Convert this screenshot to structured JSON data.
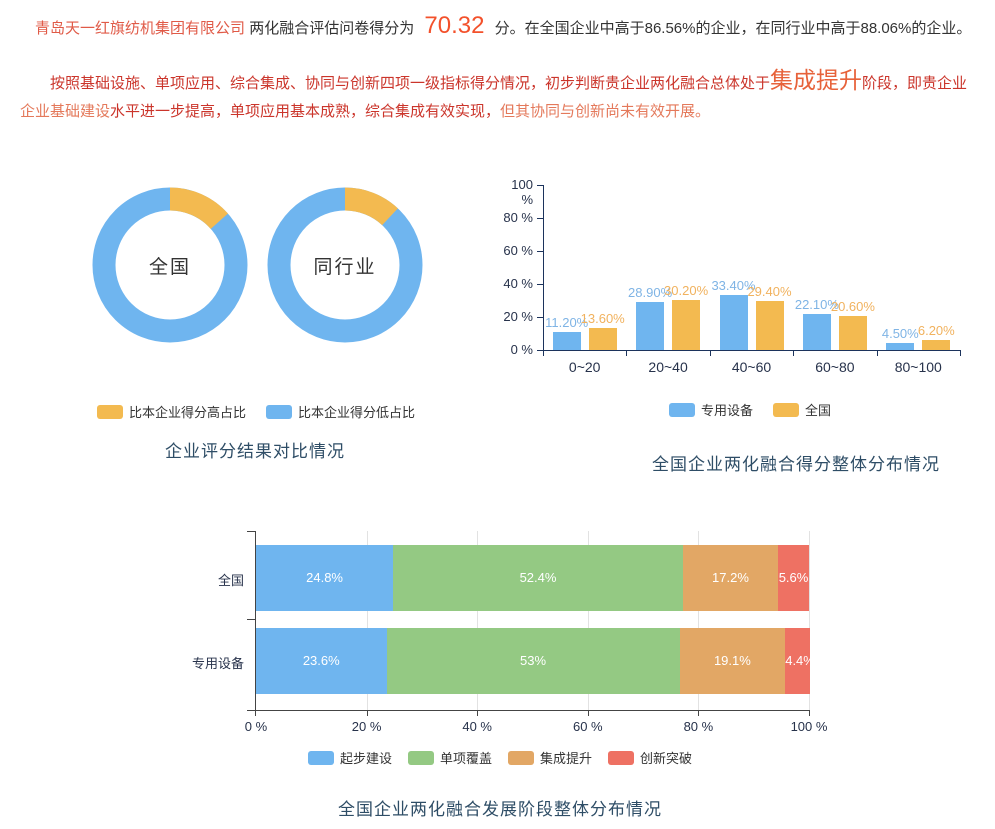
{
  "report": {
    "line1": {
      "company": "青岛天一红旗纺机集团有限公司",
      "mid": "两化融合评估问卷得分为",
      "score": "70.32",
      "tail": "分。在全国企业中高于86.56%的企业，在同行业中高于88.06%的企业。"
    },
    "line2": {
      "part1": "按照基础设施、单项应用、综合集成、协同与创新四项一级指标得分情况，初步判断贵企业两化融合总体处于",
      "stage": "集成提升",
      "part2": "阶段，即贵企业",
      "part3": "企业基础建设",
      "part4": "水平进一步提高，单项应用基本成熟，综合集成有效实现，",
      "part5": "但其协同与创新尚未有效开展。"
    }
  },
  "colors": {
    "blue": "#6fb5ef",
    "yellow": "#f3ba50",
    "green": "#94c983",
    "orange": "#e2a765",
    "red": "#ee7163",
    "title_navy": "#2e4d66",
    "axis_navy": "#1c335c",
    "paragraph_red": "#cb352b",
    "highlight_orange": "#e7623a",
    "score_red": "#f3512b"
  },
  "chart_data": [
    {
      "type": "pie",
      "title": "企业评分结果对比情况",
      "legend": [
        {
          "label": "比本企业得分高占比",
          "color": "#f3ba50"
        },
        {
          "label": "比本企业得分低占比",
          "color": "#6fb5ef"
        }
      ],
      "colors": {
        "high": "#f3ba50",
        "low": "#6fb5ef"
      },
      "donuts": [
        {
          "label": "全国",
          "slices": [
            {
              "name": "比本企业得分高占比",
              "value": 13.44
            },
            {
              "name": "比本企业得分低占比",
              "value": 86.56
            }
          ]
        },
        {
          "label": "同行业",
          "slices": [
            {
              "name": "比本企业得分高占比",
              "value": 11.94
            },
            {
              "name": "比本企业得分低占比",
              "value": 88.06
            }
          ]
        }
      ]
    },
    {
      "type": "bar",
      "title": "全国企业两化融合得分整体分布情况",
      "categories": [
        "0~20",
        "20~40",
        "40~60",
        "60~80",
        "80~100"
      ],
      "series": [
        {
          "name": "专用设备",
          "color": "#6fb5ef",
          "label_color": "#7fb4e5",
          "values": [
            11.2,
            28.9,
            33.4,
            22.1,
            4.5
          ],
          "labels": [
            "11.20%",
            "28.90%",
            "33.40%",
            "22.10%",
            "4.50%"
          ]
        },
        {
          "name": "全国",
          "color": "#f3ba50",
          "label_color": "#f1b25e",
          "values": [
            13.6,
            30.2,
            29.4,
            20.6,
            6.2
          ],
          "labels": [
            "13.60%",
            "30.20%",
            "29.40%",
            "20.60%",
            "6.20%"
          ]
        }
      ],
      "yticks": [
        "0 %",
        "20 %",
        "40 %",
        "60 %",
        "80 %",
        "100 %"
      ],
      "ylim": [
        0,
        100
      ],
      "grid": false,
      "legend_position": "bottom"
    },
    {
      "type": "stacked-bar",
      "title": "全国企业两化融合发展阶段整体分布情况",
      "categories": [
        "全国",
        "专用设备"
      ],
      "series": [
        {
          "name": "起步建设",
          "color": "#6fb5ef",
          "values": [
            24.8,
            23.6
          ],
          "labels": [
            "24.8%",
            "23.6%"
          ]
        },
        {
          "name": "单项覆盖",
          "color": "#94c983",
          "values": [
            52.4,
            53
          ],
          "labels": [
            "52.4%",
            "53%"
          ]
        },
        {
          "name": "集成提升",
          "color": "#e2a765",
          "values": [
            17.2,
            19.1
          ],
          "labels": [
            "17.2%",
            "19.1%"
          ]
        },
        {
          "name": "创新突破",
          "color": "#ee7163",
          "values": [
            5.6,
            4.4
          ],
          "labels": [
            "5.6%",
            "4.4%"
          ]
        }
      ],
      "xticks": [
        "0 %",
        "20 %",
        "40 %",
        "60 %",
        "80 %",
        "100 %"
      ],
      "xlim": [
        0,
        100
      ],
      "grid": true,
      "legend_position": "bottom"
    }
  ]
}
